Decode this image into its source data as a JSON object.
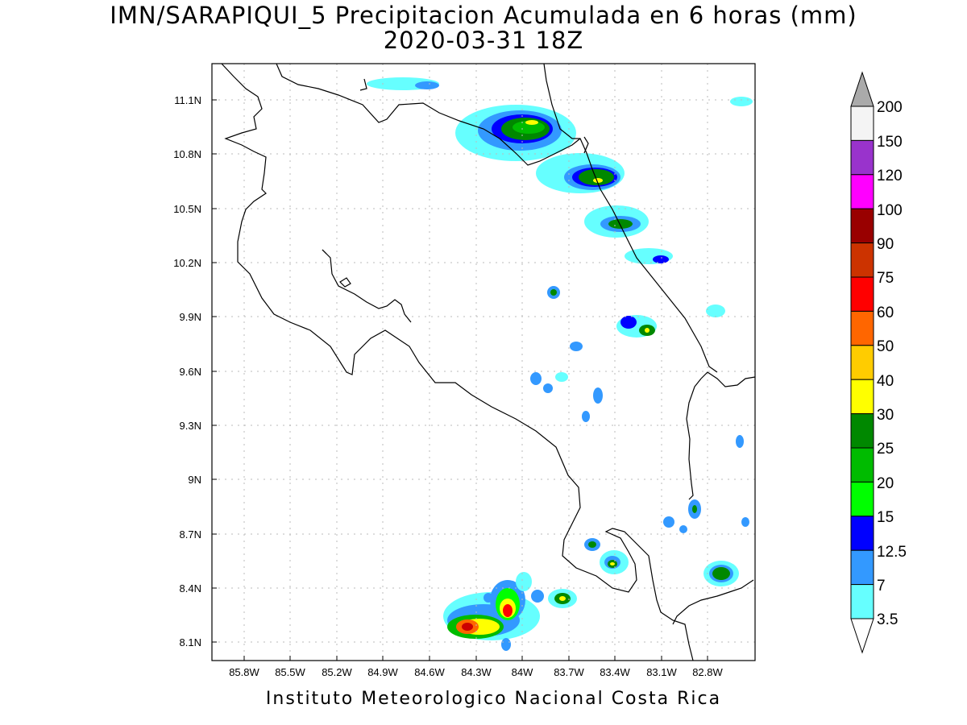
{
  "title_line1": "IMN/SARAPIQUI_5 Precipitacion Acumulada en 6 horas (mm)",
  "title_line2": "2020-03-31 18Z",
  "footer": "Instituto Meteorologico Nacional Costa Rica",
  "map": {
    "lon_labels": [
      "85.8W",
      "85.5W",
      "85.2W",
      "84.9W",
      "84.6W",
      "84.3W",
      "84W",
      "83.7W",
      "83.4W",
      "83.1W",
      "82.8W"
    ],
    "lat_labels": [
      "11.1N",
      "10.8N",
      "10.5N",
      "10.2N",
      "9.9N",
      "9.6N",
      "9.3N",
      "9N",
      "8.7N",
      "8.4N",
      "8.1N"
    ]
  },
  "colorbar": {
    "labels": [
      "200",
      "150",
      "120",
      "100",
      "90",
      "75",
      "60",
      "50",
      "40",
      "30",
      "25",
      "20",
      "15",
      "12.5",
      "7",
      "3.5"
    ],
    "colors": [
      "#aaaaaa",
      "#f4f4f4",
      "#9933cc",
      "#ff00ff",
      "#990000",
      "#cc3300",
      "#ff0000",
      "#ff6600",
      "#ffcc00",
      "#ffff00",
      "#008800",
      "#00bb00",
      "#00ff00",
      "#0000ff",
      "#3399ff",
      "#66ffff"
    ]
  }
}
